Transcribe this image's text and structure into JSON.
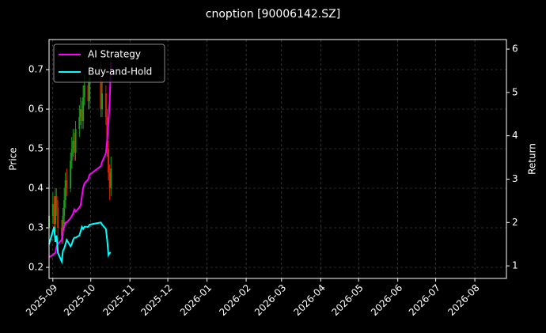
{
  "chart_data": {
    "type": "candlestick",
    "title": "cnoption [90006142.SZ]",
    "ylabel": "Price",
    "y2label": "Return",
    "x": [
      "2025-08-29",
      "2025-09-01",
      "2025-09-02",
      "2025-09-03",
      "2025-09-04",
      "2025-09-05",
      "2025-09-08",
      "2025-09-09",
      "2025-09-10",
      "2025-09-11",
      "2025-09-12",
      "2025-09-15",
      "2025-09-16",
      "2025-09-17",
      "2025-09-18",
      "2025-09-19",
      "2025-09-22",
      "2025-09-23",
      "2025-09-24",
      "2025-09-25",
      "2025-09-26",
      "2025-09-29",
      "2025-09-30",
      "2025-10-09",
      "2025-10-10",
      "2025-10-13",
      "2025-10-14",
      "2025-10-15",
      "2025-10-16",
      "2025-10-17"
    ],
    "open": [
      0.3,
      0.33,
      0.36,
      0.31,
      0.38,
      0.35,
      0.3,
      0.28,
      0.33,
      0.37,
      0.42,
      0.4,
      0.47,
      0.5,
      0.52,
      0.49,
      0.55,
      0.58,
      0.6,
      0.57,
      0.63,
      0.66,
      0.62,
      0.68,
      0.6,
      0.64,
      0.58,
      0.5,
      0.44,
      0.4
    ],
    "high": [
      0.36,
      0.39,
      0.38,
      0.4,
      0.4,
      0.37,
      0.32,
      0.35,
      0.4,
      0.44,
      0.45,
      0.49,
      0.53,
      0.55,
      0.54,
      0.57,
      0.61,
      0.63,
      0.62,
      0.66,
      0.69,
      0.67,
      0.71,
      0.72,
      0.67,
      0.66,
      0.6,
      0.52,
      0.46,
      0.48
    ],
    "low": [
      0.27,
      0.31,
      0.29,
      0.29,
      0.33,
      0.28,
      0.26,
      0.26,
      0.31,
      0.35,
      0.38,
      0.39,
      0.45,
      0.48,
      0.47,
      0.47,
      0.53,
      0.56,
      0.55,
      0.55,
      0.61,
      0.6,
      0.6,
      0.58,
      0.58,
      0.56,
      0.48,
      0.42,
      0.37,
      0.38
    ],
    "close": [
      0.33,
      0.36,
      0.31,
      0.38,
      0.35,
      0.3,
      0.28,
      0.33,
      0.37,
      0.42,
      0.4,
      0.47,
      0.5,
      0.52,
      0.49,
      0.55,
      0.58,
      0.6,
      0.57,
      0.63,
      0.66,
      0.62,
      0.68,
      0.6,
      0.64,
      0.58,
      0.5,
      0.44,
      0.4,
      0.45
    ],
    "up_color": "#1a9e1a",
    "down_color": "#e02000",
    "series": [
      {
        "name": "AI Strategy",
        "color": "#ff00ff",
        "axis": "y2",
        "values": [
          1.2,
          1.25,
          1.28,
          1.3,
          1.45,
          1.5,
          1.6,
          1.8,
          1.9,
          2.0,
          2.0,
          2.1,
          2.15,
          2.2,
          2.3,
          2.25,
          2.35,
          2.4,
          2.6,
          2.8,
          2.9,
          3.0,
          3.1,
          3.3,
          3.4,
          3.6,
          3.9,
          4.3,
          4.8,
          5.7
        ]
      },
      {
        "name": "Buy-and-Hold",
        "color": "#00ffff",
        "axis": "y2",
        "values": [
          1.5,
          1.8,
          1.9,
          1.55,
          1.7,
          1.3,
          1.1,
          1.35,
          1.4,
          1.5,
          1.6,
          1.45,
          1.5,
          1.6,
          1.65,
          1.65,
          1.7,
          1.8,
          1.9,
          1.85,
          1.9,
          1.9,
          1.95,
          2.0,
          1.95,
          1.85,
          1.6,
          1.25,
          1.3,
          1.3
        ]
      }
    ],
    "xlim": [
      "2025-08-29",
      "2026-08-26"
    ],
    "xticks": [
      {
        "value": "2025-09-01",
        "label": "2025-09"
      },
      {
        "value": "2025-10-01",
        "label": "2025-10"
      },
      {
        "value": "2025-11-01",
        "label": "2025-11"
      },
      {
        "value": "2025-12-01",
        "label": "2025-12"
      },
      {
        "value": "2026-01-01",
        "label": "2026-01"
      },
      {
        "value": "2026-02-01",
        "label": "2026-02"
      },
      {
        "value": "2026-03-01",
        "label": "2026-03"
      },
      {
        "value": "2026-04-01",
        "label": "2026-04"
      },
      {
        "value": "2026-05-01",
        "label": "2026-05"
      },
      {
        "value": "2026-06-01",
        "label": "2026-06"
      },
      {
        "value": "2026-07-01",
        "label": "2026-07"
      },
      {
        "value": "2026-08-01",
        "label": "2026-08"
      }
    ],
    "ylim": [
      0.172,
      0.776
    ],
    "yticks": [
      0.2,
      0.3,
      0.4,
      0.5,
      0.6,
      0.7
    ],
    "y2lim": [
      0.71,
      6.22
    ],
    "y2ticks": [
      1,
      2,
      3,
      4,
      5,
      6
    ],
    "grid": true,
    "legend": "upper left"
  }
}
